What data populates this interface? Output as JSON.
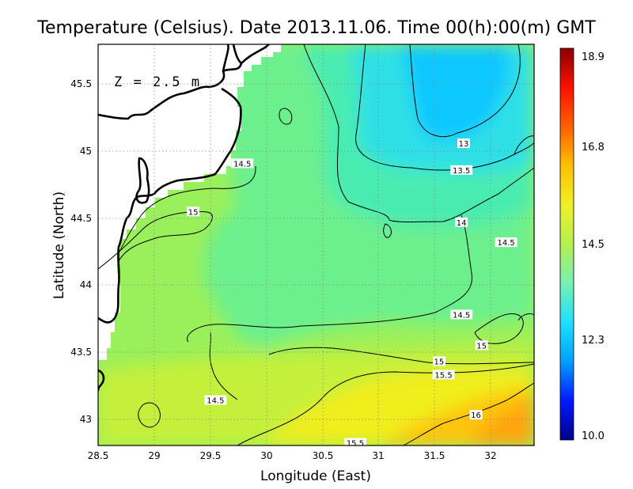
{
  "title": "Temperature (Celsius). Date 2013.11.06. Time 00(h):00(m) GMT",
  "depth_label": "Z = 2.5 m",
  "xlabel": "Longitude (East)",
  "ylabel": "Latitude (North)",
  "x_ticks": [
    "28.5",
    "29",
    "29.5",
    "30",
    "30.5",
    "31",
    "31.5",
    "32"
  ],
  "y_ticks": [
    "45.5",
    "45",
    "44.5",
    "44",
    "43.5",
    "43"
  ],
  "colorbar": {
    "ticks": [
      "18.9",
      "16.8",
      "14.5",
      "12.3",
      "10.0"
    ],
    "min": 10.0,
    "max": 18.9,
    "colors": [
      "#00008a",
      "#0018ff",
      "#00a0ff",
      "#1ee0ff",
      "#78f0b4",
      "#b4f050",
      "#f0f028",
      "#ffc000",
      "#ff6000",
      "#ff1000",
      "#8a0000"
    ]
  },
  "contour_labels": [
    {
      "text": "13",
      "lon": 31.77,
      "lat": 45.06
    },
    {
      "text": "13.5",
      "lon": 31.75,
      "lat": 44.86
    },
    {
      "text": "14",
      "lon": 31.75,
      "lat": 44.47
    },
    {
      "text": "14.5",
      "lon": 32.15,
      "lat": 44.32
    },
    {
      "text": "14.5",
      "lon": 29.79,
      "lat": 44.91
    },
    {
      "text": "15",
      "lon": 29.35,
      "lat": 44.55
    },
    {
      "text": "14.5",
      "lon": 31.75,
      "lat": 43.78
    },
    {
      "text": "15",
      "lon": 31.93,
      "lat": 43.55
    },
    {
      "text": "15",
      "lon": 31.55,
      "lat": 43.43
    },
    {
      "text": "15.5",
      "lon": 31.59,
      "lat": 43.33
    },
    {
      "text": "16",
      "lon": 31.88,
      "lat": 43.03
    },
    {
      "text": "14.5",
      "lon": 29.55,
      "lat": 43.14
    },
    {
      "text": "15.5",
      "lon": 30.8,
      "lat": 42.82
    }
  ],
  "chart_data": {
    "type": "heatmap",
    "title": "Temperature (Celsius). Date 2013.11.06. Time 00(h):00(m) GMT",
    "xlabel": "Longitude (East)",
    "ylabel": "Latitude (North)",
    "xlim": [
      28.5,
      32.4
    ],
    "ylim": [
      42.8,
      45.8
    ],
    "value_range": [
      10.0,
      18.9
    ],
    "contour_levels": [
      13,
      13.5,
      14,
      14.5,
      15,
      15.5,
      16
    ],
    "grid": true,
    "colorbar_position": "right",
    "samples": [
      {
        "lon": 31.7,
        "lat": 45.5,
        "value": 12.8
      },
      {
        "lon": 31.2,
        "lat": 45.0,
        "value": 13.2
      },
      {
        "lon": 31.0,
        "lat": 44.7,
        "value": 13.7
      },
      {
        "lon": 30.3,
        "lat": 45.5,
        "value": 14.3
      },
      {
        "lon": 30.4,
        "lat": 44.3,
        "value": 14.3
      },
      {
        "lon": 29.5,
        "lat": 44.2,
        "value": 14.7
      },
      {
        "lon": 29.0,
        "lat": 43.3,
        "value": 14.8
      },
      {
        "lon": 30.5,
        "lat": 43.2,
        "value": 15.2
      },
      {
        "lon": 31.0,
        "lat": 43.1,
        "value": 15.5
      },
      {
        "lon": 32.0,
        "lat": 42.9,
        "value": 16.2
      }
    ]
  }
}
